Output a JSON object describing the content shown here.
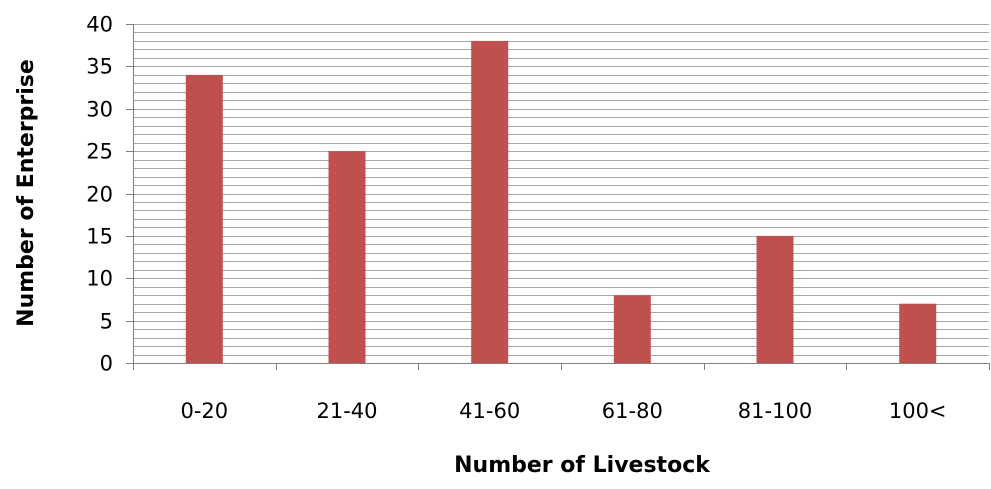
{
  "colors": {
    "bar": "#C0504D",
    "gridline": "#A6A6A6",
    "axis": "#808080",
    "background": "#FFFFFF",
    "text": "#000000"
  },
  "chart_data": {
    "type": "bar",
    "title": "",
    "xlabel": "Number of Livestock",
    "ylabel": "Number of Enterprise",
    "categories": [
      "0-20",
      "21-40",
      "41-60",
      "61-80",
      "81-100",
      "100<"
    ],
    "values": [
      34,
      25,
      38,
      8,
      15,
      7
    ],
    "ylim": [
      0,
      40
    ],
    "y_ticks": [
      "0",
      "5",
      "10",
      "15",
      "20",
      "25",
      "30",
      "35",
      "40"
    ],
    "minor_grid_step": 1,
    "grid": true,
    "legend": "none"
  }
}
